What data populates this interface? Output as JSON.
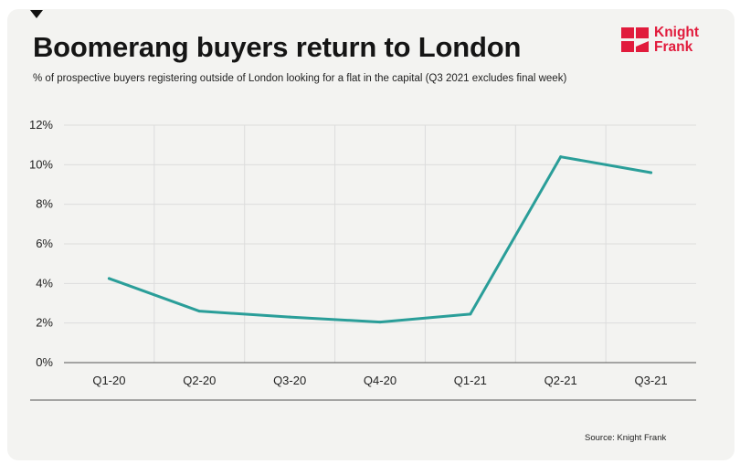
{
  "title": "Boomerang buyers return to London",
  "subtitle": "% of prospective buyers registering outside of London looking for a flat in the capital (Q3 2021 excludes final week)",
  "logo": {
    "line1": "Knight",
    "line2": "Frank",
    "color": "#e11b3c"
  },
  "source": "Source: Knight Frank",
  "colors": {
    "line": "#2a9e99",
    "grid": "#dcdcdc",
    "axis": "#555555",
    "background": "#f3f3f1"
  },
  "chart_data": {
    "type": "line",
    "categories": [
      "Q1-20",
      "Q2-20",
      "Q3-20",
      "Q4-20",
      "Q1-21",
      "Q2-21",
      "Q3-21"
    ],
    "values": [
      4.25,
      2.6,
      2.3,
      2.05,
      2.45,
      10.4,
      9.6
    ],
    "ylim": [
      0,
      12
    ],
    "yticks": [
      0,
      2,
      4,
      6,
      8,
      10,
      12
    ],
    "ytick_labels": [
      "0%",
      "2%",
      "4%",
      "6%",
      "8%",
      "10%",
      "12%"
    ],
    "grid": true,
    "legend": "none"
  }
}
